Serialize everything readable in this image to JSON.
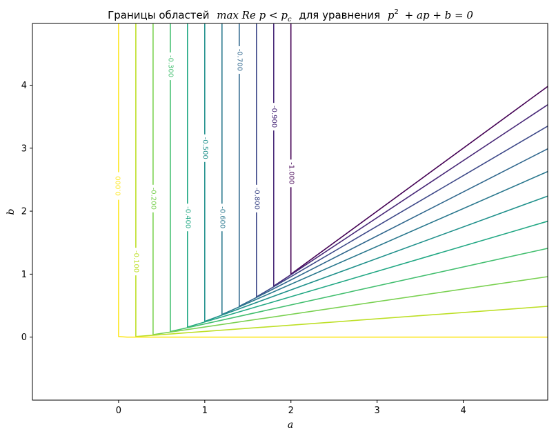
{
  "chart_data": {
    "type": "contour",
    "title_prefix": "Границы областей",
    "title_math": "max Re p < p",
    "title_sub": "c",
    "title_middle": "для уравнения",
    "title_eq_part1": "p",
    "title_eq_sup": "2",
    "title_eq_part2": "+ ap + b = 0",
    "xlabel": "a",
    "ylabel": "b",
    "xlim": [
      -1.0,
      4.98
    ],
    "ylim": [
      -1.0,
      4.98
    ],
    "xticks": [
      0,
      1,
      2,
      3,
      4
    ],
    "yticks": [
      0,
      1,
      2,
      3,
      4
    ],
    "xtick_labels": [
      "0",
      "1",
      "2",
      "3",
      "4"
    ],
    "ytick_labels": [
      "0",
      "1",
      "2",
      "3",
      "4"
    ],
    "grid": false,
    "colormap": "viridis",
    "levels": [
      {
        "value": -1.0,
        "label": "-1.000",
        "color": "#440154",
        "points": [
          [
            2.0,
            4.98
          ],
          [
            2.0,
            1.0
          ],
          [
            4.98,
            3.98
          ]
        ],
        "label_at": [
          2.0,
          2.6
        ]
      },
      {
        "value": -0.9,
        "label": "-0.900",
        "color": "#482878",
        "points": [
          [
            1.8,
            4.98
          ],
          [
            1.8,
            0.81
          ],
          [
            4.98,
            3.69
          ]
        ],
        "label_at": [
          1.8,
          3.5
        ]
      },
      {
        "value": -0.8,
        "label": "-0.800",
        "color": "#3e4989",
        "points": [
          [
            1.6,
            4.98
          ],
          [
            1.6,
            0.64
          ],
          [
            4.98,
            3.35
          ]
        ],
        "label_at": [
          1.6,
          2.2
        ]
      },
      {
        "value": -0.7,
        "label": "-0.700",
        "color": "#31688e",
        "points": [
          [
            1.4,
            4.98
          ],
          [
            1.4,
            0.49
          ],
          [
            4.98,
            2.99
          ]
        ],
        "label_at": [
          1.4,
          4.4
        ]
      },
      {
        "value": -0.6,
        "label": "-0.600",
        "color": "#2a788e",
        "points": [
          [
            1.2,
            4.98
          ],
          [
            1.2,
            0.36
          ],
          [
            4.98,
            2.63
          ]
        ],
        "label_at": [
          1.2,
          1.9
        ]
      },
      {
        "value": -0.5,
        "label": "-0.500",
        "color": "#21918c",
        "points": [
          [
            1.0,
            4.98
          ],
          [
            1.0,
            0.25
          ],
          [
            4.98,
            2.24
          ]
        ],
        "label_at": [
          1.0,
          3.0
        ]
      },
      {
        "value": -0.4,
        "label": "-0.400",
        "color": "#22a884",
        "points": [
          [
            0.8,
            4.98
          ],
          [
            0.8,
            0.16
          ],
          [
            4.98,
            1.84
          ]
        ],
        "label_at": [
          0.8,
          1.9
        ]
      },
      {
        "value": -0.3,
        "label": "-0.300",
        "color": "#44bf70",
        "points": [
          [
            0.6,
            4.98
          ],
          [
            0.6,
            0.09
          ],
          [
            4.98,
            1.41
          ]
        ],
        "label_at": [
          0.6,
          4.3
        ]
      },
      {
        "value": -0.2,
        "label": "-0.200",
        "color": "#7ad151",
        "points": [
          [
            0.4,
            4.98
          ],
          [
            0.4,
            0.04
          ],
          [
            4.98,
            0.96
          ]
        ],
        "label_at": [
          0.4,
          2.2
        ]
      },
      {
        "value": -0.1,
        "label": "-0.100",
        "color": "#bddf26",
        "points": [
          [
            0.2,
            4.98
          ],
          [
            0.2,
            0.01
          ],
          [
            4.98,
            0.49
          ]
        ],
        "label_at": [
          0.2,
          1.2
        ]
      },
      {
        "value": 0.0,
        "label": "0.000",
        "color": "#fde725",
        "points": [
          [
            0.0,
            4.98
          ],
          [
            0.0,
            0.01
          ],
          [
            0.1,
            0.0
          ],
          [
            4.98,
            0.0
          ]
        ],
        "label_at": [
          0.0,
          2.4
        ]
      }
    ]
  }
}
